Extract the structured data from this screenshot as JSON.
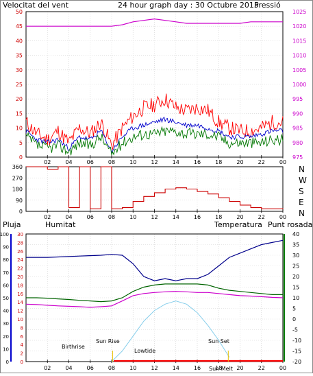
{
  "header": {
    "wind_label": "Velocitat del vent",
    "title": "24 hour graph day : 30 Octubre 2015",
    "pressure_label": "Pressió"
  },
  "panel2": {
    "direction_labels": [
      "N",
      "W",
      "S",
      "E",
      "N"
    ]
  },
  "panel3": {
    "rain_label": "Pluja",
    "humidity_label": "Humitat",
    "temperature_label": "Temperatura",
    "dewpoint_label": "Punt rosada",
    "sun_labels": {
      "birthrise": "Birthrise",
      "sun_rise": "Sun Rise",
      "lowtide": "Lowtide",
      "sun_set": "Sun Set",
      "sun_melt": "Sun Melt"
    }
  },
  "colors": {
    "wind_avg": "#0000cc",
    "gust": "#ff0000",
    "wind_min": "#007700",
    "pressure": "#cc00cc",
    "direction": "#cc0000",
    "humidity": "#00008b",
    "temperature": "#006400",
    "dewpoint": "#cc00cc",
    "solar": "#87ceeb",
    "rain": "#ff0000"
  },
  "chart_data": [
    {
      "type": "line",
      "name": "wind-and-pressure",
      "x_ticks": [
        "02",
        "04",
        "06",
        "08",
        "10",
        "12",
        "14",
        "16",
        "18",
        "20",
        "22",
        "00"
      ],
      "left_axis": {
        "ticks": [
          0,
          5,
          10,
          15,
          20,
          25,
          30,
          35,
          40,
          45,
          50
        ],
        "ylim": [
          0,
          50
        ]
      },
      "right_axis": {
        "ticks": [
          975,
          980,
          985,
          990,
          995,
          1000,
          1005,
          1010,
          1015,
          1020,
          1025
        ],
        "ylim": [
          975,
          1025
        ]
      },
      "hours": [
        0,
        1,
        2,
        3,
        4,
        5,
        6,
        7,
        8,
        9,
        10,
        11,
        12,
        13,
        14,
        15,
        16,
        17,
        18,
        19,
        20,
        21,
        22,
        23,
        24
      ],
      "series": [
        {
          "key": "pressure",
          "axis": "right",
          "values": [
            1020,
            1020,
            1020,
            1020,
            1020,
            1020,
            1020,
            1020,
            1020,
            1020.5,
            1021.5,
            1022,
            1022.5,
            1022,
            1021.5,
            1021,
            1021,
            1021,
            1021,
            1021,
            1021,
            1021.5,
            1021.5,
            1021.5,
            1021.5
          ]
        },
        {
          "key": "gust",
          "axis": "left",
          "values": [
            12,
            8,
            6,
            9,
            5,
            10,
            8,
            12,
            4,
            10,
            14,
            17,
            18,
            20,
            17,
            16,
            17,
            16,
            12,
            10,
            9,
            9,
            10,
            12,
            12
          ]
        },
        {
          "key": "wind_avg",
          "axis": "left",
          "values": [
            9,
            6,
            5,
            6,
            3,
            7,
            6,
            9,
            2,
            7,
            10,
            11,
            12,
            13,
            12,
            11,
            11,
            10,
            9,
            7,
            7,
            7,
            8,
            9,
            9
          ]
        },
        {
          "key": "wind_min",
          "axis": "left",
          "values": [
            7,
            4,
            3,
            4,
            2,
            5,
            4,
            7,
            1,
            5,
            7,
            8,
            8,
            9,
            9,
            8,
            8,
            8,
            7,
            5,
            5,
            5,
            5,
            6,
            6
          ]
        }
      ]
    },
    {
      "type": "line",
      "name": "wind-direction",
      "x_ticks": [
        "02",
        "04",
        "06",
        "08",
        "10",
        "12",
        "14",
        "16",
        "18",
        "20",
        "22",
        "00"
      ],
      "left_axis": {
        "ticks": [
          0,
          90,
          180,
          270,
          360
        ],
        "ylim": [
          0,
          360
        ]
      },
      "hours": [
        0,
        1,
        2,
        3,
        4,
        5,
        6,
        7,
        8,
        9,
        10,
        11,
        12,
        13,
        14,
        15,
        16,
        17,
        18,
        19,
        20,
        21,
        22,
        23,
        24
      ],
      "series": [
        {
          "key": "direction",
          "values": [
            360,
            360,
            340,
            360,
            30,
            360,
            20,
            360,
            20,
            30,
            80,
            120,
            150,
            180,
            190,
            180,
            160,
            140,
            110,
            80,
            50,
            30,
            20,
            20,
            25
          ]
        }
      ]
    },
    {
      "type": "line",
      "name": "humidity-temperature-rain",
      "x_ticks": [
        "02",
        "04",
        "06",
        "08",
        "10",
        "12",
        "14",
        "16",
        "18",
        "20",
        "22",
        "00"
      ],
      "rain_axis": {
        "ticks": [
          0,
          5,
          10,
          15,
          20,
          25,
          30,
          35,
          40,
          45,
          50,
          55,
          60,
          65,
          70,
          75,
          80,
          85,
          90,
          95,
          100
        ],
        "ylim": [
          0,
          100
        ]
      },
      "humidity_axis": {
        "ticks": [
          0,
          2,
          4,
          6,
          8,
          10,
          12,
          14,
          16,
          18,
          20,
          22,
          24,
          26,
          28,
          30
        ],
        "ylim": [
          0,
          30
        ]
      },
      "temperature_axis": {
        "ticks": [
          -20,
          -15,
          -10,
          -5,
          0,
          5,
          10,
          15,
          20,
          25,
          30,
          35,
          40
        ],
        "ylim": [
          -20,
          40
        ]
      },
      "hours": [
        0,
        1,
        2,
        3,
        4,
        5,
        6,
        7,
        8,
        9,
        10,
        11,
        12,
        13,
        14,
        15,
        16,
        17,
        18,
        19,
        20,
        21,
        22,
        23,
        24
      ],
      "series": [
        {
          "key": "humidity",
          "axis": "humidity",
          "values": [
            24.5,
            24.5,
            24.5,
            24.6,
            24.7,
            24.8,
            24.9,
            25,
            25.2,
            25,
            23,
            20,
            19,
            19.5,
            19,
            19.5,
            19.5,
            20.5,
            22.5,
            24.5,
            25.5,
            26.5,
            27.5,
            28,
            28.5
          ]
        },
        {
          "key": "temperature",
          "axis": "temperature",
          "values": [
            10,
            10,
            9.8,
            9.5,
            9.2,
            8.8,
            8.5,
            8.2,
            8.5,
            10,
            13,
            15,
            16,
            16.5,
            16.5,
            16.5,
            16.5,
            16,
            14.5,
            13.5,
            13,
            12.5,
            12,
            11.5,
            11.5
          ]
        },
        {
          "key": "dewpoint",
          "axis": "temperature",
          "values": [
            7,
            6.8,
            6.5,
            6.2,
            6,
            5.8,
            5.5,
            5.8,
            6.2,
            8.5,
            11,
            12,
            12.5,
            12.8,
            13,
            12.8,
            12.5,
            12.5,
            12,
            11.5,
            11,
            10.8,
            10.5,
            10.2,
            10
          ]
        },
        {
          "key": "solar",
          "axis": "temperature",
          "values": [
            null,
            null,
            null,
            null,
            null,
            null,
            null,
            null,
            -20,
            -15,
            -8,
            -1,
            4,
            7,
            8.5,
            7,
            3,
            -3,
            -10,
            -18,
            null,
            null,
            null,
            null,
            null
          ]
        },
        {
          "key": "rain",
          "axis": "rain",
          "values": [
            0,
            0,
            0,
            0,
            0,
            0,
            0,
            0,
            0,
            0,
            0,
            0,
            0,
            0,
            0,
            0,
            0,
            0,
            0,
            0,
            0,
            0,
            0,
            0,
            0
          ]
        }
      ]
    }
  ]
}
